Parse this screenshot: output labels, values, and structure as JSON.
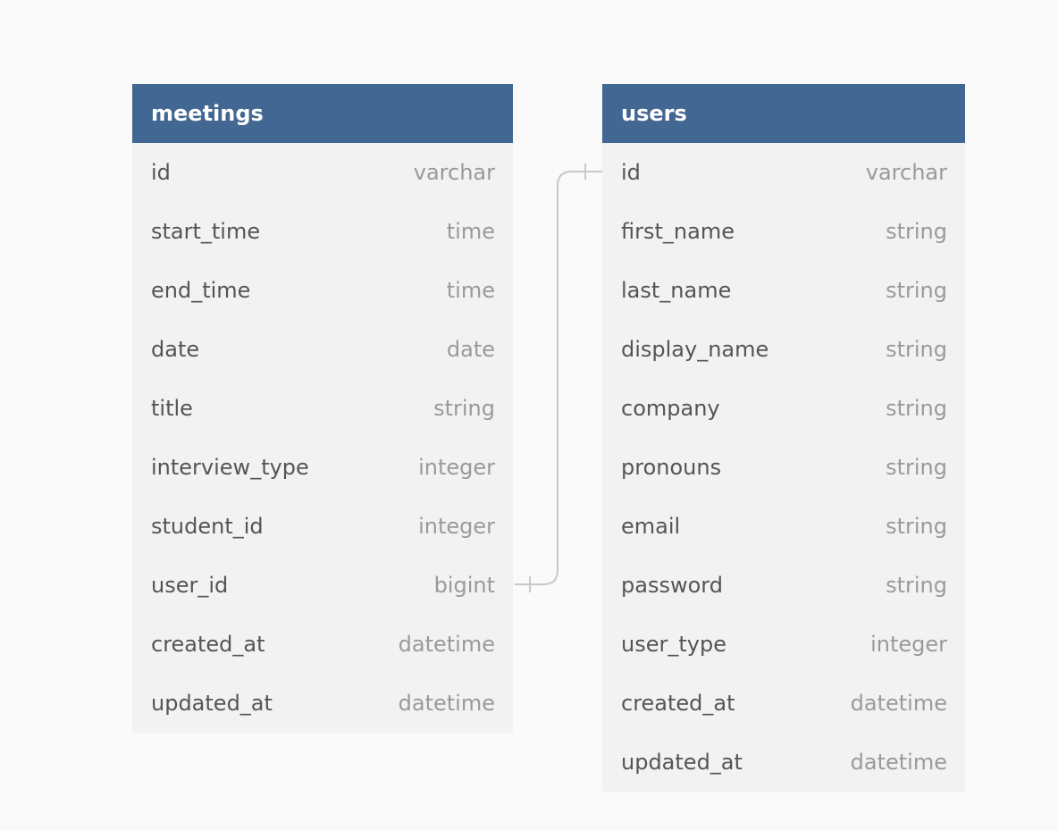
{
  "tables": [
    {
      "name": "meetings",
      "fields": [
        {
          "name": "id",
          "type": "varchar"
        },
        {
          "name": "start_time",
          "type": "time"
        },
        {
          "name": "end_time",
          "type": "time"
        },
        {
          "name": "date",
          "type": "date"
        },
        {
          "name": "title",
          "type": "string"
        },
        {
          "name": "interview_type",
          "type": "integer"
        },
        {
          "name": "student_id",
          "type": "integer"
        },
        {
          "name": "user_id",
          "type": "bigint"
        },
        {
          "name": "created_at",
          "type": "datetime"
        },
        {
          "name": "updated_at",
          "type": "datetime"
        }
      ]
    },
    {
      "name": "users",
      "fields": [
        {
          "name": "id",
          "type": "varchar"
        },
        {
          "name": "first_name",
          "type": "string"
        },
        {
          "name": "last_name",
          "type": "string"
        },
        {
          "name": "display_name",
          "type": "string"
        },
        {
          "name": "company",
          "type": "string"
        },
        {
          "name": "pronouns",
          "type": "string"
        },
        {
          "name": "email",
          "type": "string"
        },
        {
          "name": "password",
          "type": "string"
        },
        {
          "name": "user_type",
          "type": "integer"
        },
        {
          "name": "created_at",
          "type": "datetime"
        },
        {
          "name": "updated_at",
          "type": "datetime"
        }
      ]
    }
  ],
  "relationship": {
    "from_table": "meetings",
    "from_field": "user_id",
    "to_table": "users",
    "to_field": "id",
    "cardinality": "one-to-one"
  },
  "colors": {
    "header": "#416792",
    "table_body": "#f2f2f2",
    "background": "#fafafa",
    "connector": "#c8c8c8"
  }
}
